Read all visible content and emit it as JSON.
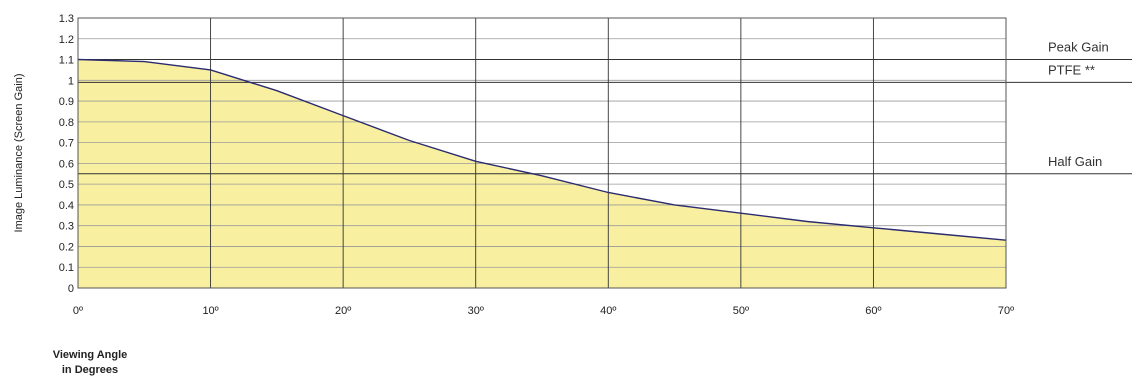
{
  "chart_data": {
    "type": "area",
    "title": "",
    "ylabel": "Image Luminance (Screen Gain)",
    "xlabel_lines": [
      "Viewing Angle",
      "in Degrees"
    ],
    "xlim": [
      0,
      70
    ],
    "ylim": [
      0,
      1.3
    ],
    "grid": true,
    "x_ticks": [
      {
        "value": 0,
        "label": "0º"
      },
      {
        "value": 10,
        "label": "10º"
      },
      {
        "value": 20,
        "label": "20º"
      },
      {
        "value": 30,
        "label": "30º"
      },
      {
        "value": 40,
        "label": "40º"
      },
      {
        "value": 50,
        "label": "50º"
      },
      {
        "value": 60,
        "label": "60º"
      },
      {
        "value": 70,
        "label": "70º"
      }
    ],
    "y_ticks": [
      {
        "value": 0,
        "label": "0"
      },
      {
        "value": 0.1,
        "label": "0.1"
      },
      {
        "value": 0.2,
        "label": "0.2"
      },
      {
        "value": 0.3,
        "label": "0.3"
      },
      {
        "value": 0.4,
        "label": "0.4"
      },
      {
        "value": 0.5,
        "label": "0.5"
      },
      {
        "value": 0.6,
        "label": "0.6"
      },
      {
        "value": 0.7,
        "label": "0.7"
      },
      {
        "value": 0.8,
        "label": "0.8"
      },
      {
        "value": 0.9,
        "label": "0.9"
      },
      {
        "value": 1.0,
        "label": "1"
      },
      {
        "value": 1.1,
        "label": "1.1"
      },
      {
        "value": 1.2,
        "label": "1.2"
      },
      {
        "value": 1.3,
        "label": "1.3"
      }
    ],
    "series": [
      {
        "x": [
          0,
          5,
          10,
          15,
          20,
          25,
          30,
          35,
          40,
          45,
          50,
          55,
          60,
          65,
          70
        ],
        "y": [
          1.1,
          1.09,
          1.05,
          0.95,
          0.83,
          0.71,
          0.61,
          0.54,
          0.46,
          0.4,
          0.36,
          0.32,
          0.29,
          0.26,
          0.23
        ],
        "fill": "#f8f0a0",
        "line": "#2b2b70"
      }
    ],
    "reference_lines": [
      {
        "label": "Peak Gain",
        "y": 1.1
      },
      {
        "label": "PTFE **",
        "y": 0.99
      },
      {
        "label": "Half Gain",
        "y": 0.55
      }
    ]
  }
}
